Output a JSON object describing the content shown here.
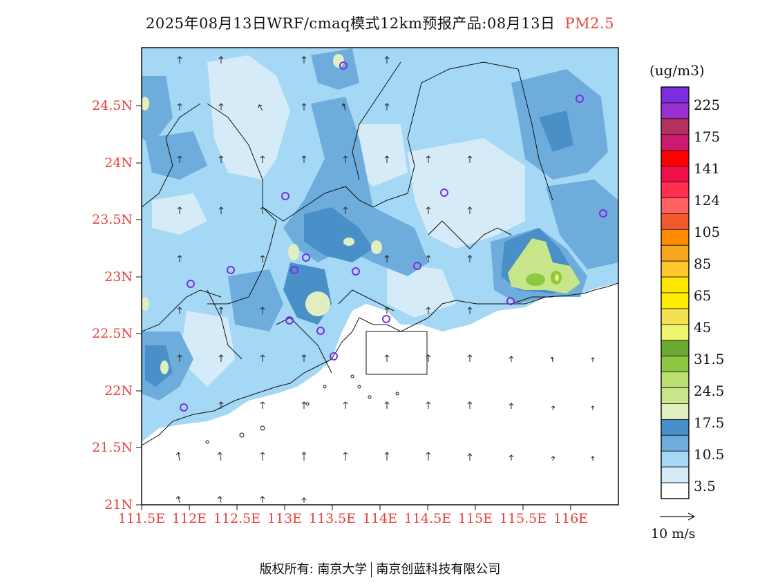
{
  "title": {
    "main": "2025年08月13日WRF/cmaq模式12km预报产品:08月13日",
    "species": "PM2.5"
  },
  "axes": {
    "y_ticks": [
      "24.5N",
      "24N",
      "23.5N",
      "23N",
      "22.5N",
      "22N",
      "21.5N",
      "21N"
    ],
    "x_ticks": [
      "111.5E",
      "112E",
      "112.5E",
      "113E",
      "113.5E",
      "114E",
      "114.5E",
      "115E",
      "115.5E",
      "116E"
    ]
  },
  "colorbar": {
    "unit": "(ug/m3)",
    "labels": [
      "225",
      "175",
      "141",
      "124",
      "105",
      "85",
      "65",
      "45",
      "31.5",
      "24.5",
      "17.5",
      "10.5",
      "3.5"
    ],
    "colors": [
      "#7a2ee0",
      "#9b30d0",
      "#b33060",
      "#cc1a70",
      "#ff0000",
      "#f01046",
      "#ff3050",
      "#ff6060",
      "#f05a2c",
      "#ff8c00",
      "#f7a51c",
      "#ffc82d",
      "#ffe600",
      "#ffee00",
      "#f5e050",
      "#f0f570",
      "#6aaa30",
      "#8cc840",
      "#bbe070",
      "#c8e58a",
      "#e0eec0",
      "#4a90c8",
      "#6eacdc",
      "#a4d8f4",
      "#d5ecf8",
      "#ffffff"
    ]
  },
  "wind_legend": {
    "label": "10 m/s"
  },
  "footer": {
    "left": "版权所有: 南京大学",
    "right": "南京创蓝科技有限公司"
  }
}
